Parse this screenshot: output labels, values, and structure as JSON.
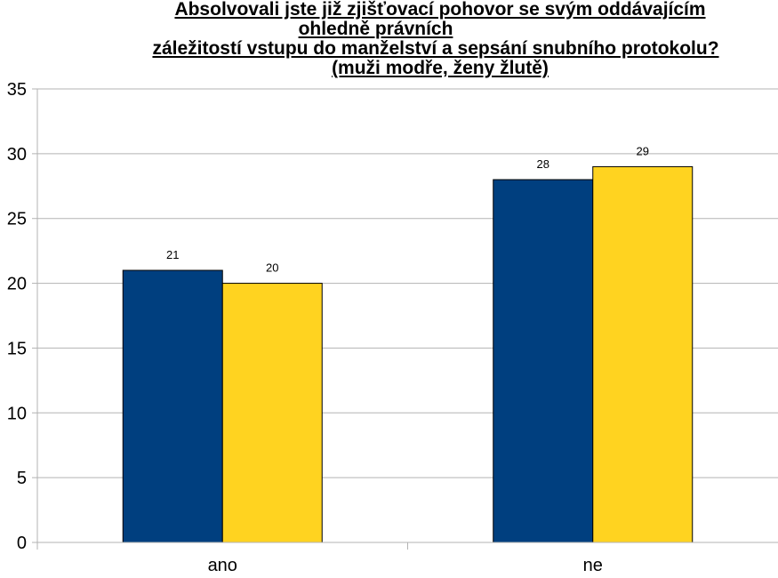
{
  "chart_data": {
    "type": "bar",
    "title_lines": [
      "Absolvovali jste již zjišťovací pohovor se svým oddávajícím",
      "ohledně právních",
      "záležitostí vstupu do manželství a sepsání snubního protokolu?",
      "(muži modře, ženy žlutě)"
    ],
    "categories": [
      "ano",
      "ne"
    ],
    "series": [
      {
        "color": "#003F7F",
        "values": [
          21,
          28
        ]
      },
      {
        "color": "#FFD320",
        "values": [
          20,
          29
        ]
      }
    ],
    "ylim": [
      0,
      35
    ],
    "yticks": [
      0,
      5,
      10,
      15,
      20,
      25,
      30,
      35
    ],
    "grid": true,
    "data_labels": true
  }
}
